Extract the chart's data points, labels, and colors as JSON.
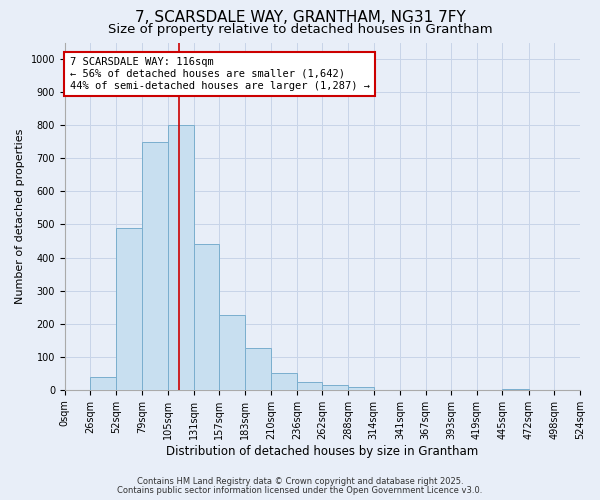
{
  "title": "7, SCARSDALE WAY, GRANTHAM, NG31 7FY",
  "subtitle": "Size of property relative to detached houses in Grantham",
  "xlabel": "Distribution of detached houses by size in Grantham",
  "ylabel": "Number of detached properties",
  "bar_edges": [
    0,
    26,
    52,
    79,
    105,
    131,
    157,
    183,
    210,
    236,
    262,
    288,
    314,
    341,
    367,
    393,
    419,
    445,
    472,
    498,
    524
  ],
  "bar_heights": [
    0,
    40,
    490,
    750,
    800,
    440,
    225,
    125,
    50,
    25,
    15,
    8,
    0,
    0,
    0,
    0,
    0,
    2,
    0,
    0
  ],
  "bar_color": "#c8dff0",
  "bar_edgecolor": "#7aaece",
  "bar_linewidth": 0.7,
  "vline_x": 116,
  "vline_color": "#cc0000",
  "vline_linewidth": 1.2,
  "annotation_text": "7 SCARSDALE WAY: 116sqm\n← 56% of detached houses are smaller (1,642)\n44% of semi-detached houses are larger (1,287) →",
  "annotation_box_edgecolor": "#cc0000",
  "annotation_box_facecolor": "#ffffff",
  "ylim": [
    0,
    1050
  ],
  "yticks": [
    0,
    100,
    200,
    300,
    400,
    500,
    600,
    700,
    800,
    900,
    1000
  ],
  "xtick_labels": [
    "0sqm",
    "26sqm",
    "52sqm",
    "79sqm",
    "105sqm",
    "131sqm",
    "157sqm",
    "183sqm",
    "210sqm",
    "236sqm",
    "262sqm",
    "288sqm",
    "314sqm",
    "341sqm",
    "367sqm",
    "393sqm",
    "419sqm",
    "445sqm",
    "472sqm",
    "498sqm",
    "524sqm"
  ],
  "bg_color": "#e8eef8",
  "plot_bg_color": "#e8eef8",
  "grid_color": "#c8d4e8",
  "footer1": "Contains HM Land Registry data © Crown copyright and database right 2025.",
  "footer2": "Contains public sector information licensed under the Open Government Licence v3.0.",
  "title_fontsize": 11,
  "subtitle_fontsize": 9.5,
  "xlabel_fontsize": 8.5,
  "ylabel_fontsize": 8,
  "tick_fontsize": 7,
  "annotation_fontsize": 7.5,
  "footer_fontsize": 6
}
